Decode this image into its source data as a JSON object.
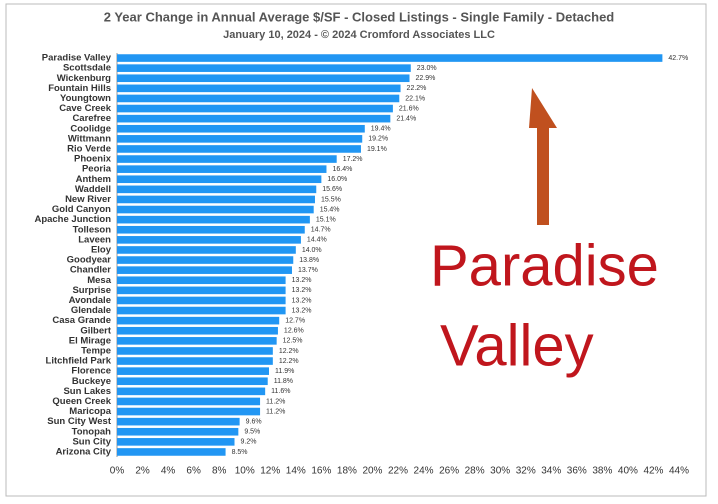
{
  "chart_data": {
    "type": "bar",
    "orientation": "horizontal",
    "title": "2 Year Change in Annual Average $/SF - Closed Listings - Single Family - Detached",
    "subtitle": "January 10, 2024 - © 2024 Cromford Associates LLC",
    "categories": [
      "Paradise Valley",
      "Scottsdale",
      "Wickenburg",
      "Fountain Hills",
      "Youngtown",
      "Cave Creek",
      "Carefree",
      "Coolidge",
      "Wittmann",
      "Rio Verde",
      "Phoenix",
      "Peoria",
      "Anthem",
      "Waddell",
      "New River",
      "Gold Canyon",
      "Apache Junction",
      "Tolleson",
      "Laveen",
      "Eloy",
      "Goodyear",
      "Chandler",
      "Mesa",
      "Surprise",
      "Avondale",
      "Glendale",
      "Casa Grande",
      "Gilbert",
      "El Mirage",
      "Tempe",
      "Litchfield Park",
      "Florence",
      "Buckeye",
      "Sun Lakes",
      "Queen Creek",
      "Maricopa",
      "Sun City West",
      "Tonopah",
      "Sun City",
      "Arizona City"
    ],
    "values": [
      42.7,
      23.0,
      22.9,
      22.2,
      22.1,
      21.6,
      21.4,
      19.4,
      19.2,
      19.1,
      17.2,
      16.4,
      16.0,
      15.6,
      15.5,
      15.4,
      15.1,
      14.7,
      14.4,
      14.0,
      13.8,
      13.7,
      13.2,
      13.2,
      13.2,
      13.2,
      12.7,
      12.6,
      12.5,
      12.2,
      12.2,
      11.9,
      11.8,
      11.6,
      11.2,
      11.2,
      9.6,
      9.5,
      9.2,
      8.5
    ],
    "value_labels": [
      "42.7%",
      "23.0%",
      "22.9%",
      "22.2%",
      "22.1%",
      "21.6%",
      "21.4%",
      "19.4%",
      "19.2%",
      "19.1%",
      "17.2%",
      "16.4%",
      "16.0%",
      "15.6%",
      "15.5%",
      "15.4%",
      "15.1%",
      "14.7%",
      "14.4%",
      "14.0%",
      "13.8%",
      "13.7%",
      "13.2%",
      "13.2%",
      "13.2%",
      "13.2%",
      "12.7%",
      "12.6%",
      "12.5%",
      "12.2%",
      "12.2%",
      "11.9%",
      "11.8%",
      "11.6%",
      "11.2%",
      "11.2%",
      "9.6%",
      "9.5%",
      "9.2%",
      "8.5%"
    ],
    "color": "#2196f3",
    "xlim": [
      0,
      44
    ],
    "xticks": [
      {
        "value": 0,
        "label": "0%"
      },
      {
        "value": 2,
        "label": "2%"
      },
      {
        "value": 4,
        "label": "4%"
      },
      {
        "value": 6,
        "label": "6%"
      },
      {
        "value": 8,
        "label": "8%"
      },
      {
        "value": 10,
        "label": "10%"
      },
      {
        "value": 12,
        "label": "12%"
      },
      {
        "value": 14,
        "label": "14%"
      },
      {
        "value": 16,
        "label": "16%"
      },
      {
        "value": 18,
        "label": "18%"
      },
      {
        "value": 20,
        "label": "20%"
      },
      {
        "value": 22,
        "label": "22%"
      },
      {
        "value": 24,
        "label": "24%"
      },
      {
        "value": 26,
        "label": "26%"
      },
      {
        "value": 28,
        "label": "28%"
      },
      {
        "value": 30,
        "label": "30%"
      },
      {
        "value": 32,
        "label": "32%"
      },
      {
        "value": 34,
        "label": "34%"
      },
      {
        "value": 36,
        "label": "36%"
      },
      {
        "value": 38,
        "label": "38%"
      },
      {
        "value": 40,
        "label": "40%"
      },
      {
        "value": 42,
        "label": "42%"
      },
      {
        "value": 44,
        "label": "44%"
      }
    ],
    "grid": false,
    "annotation": [
      "Paradise",
      "Valley"
    ]
  }
}
